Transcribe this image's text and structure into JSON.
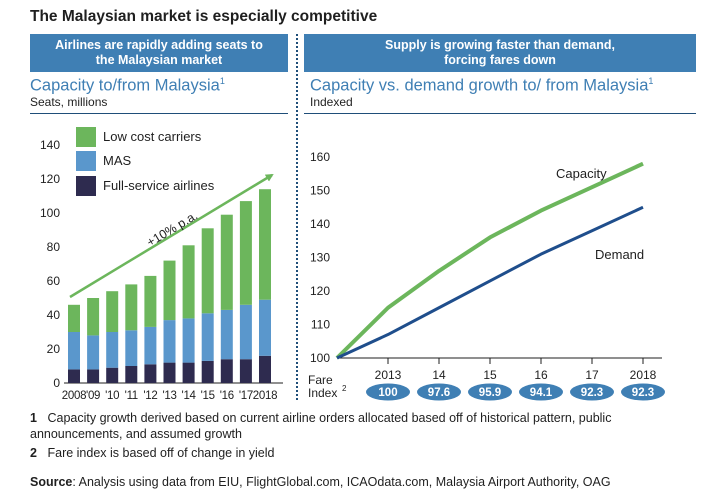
{
  "title": "The Malaysian market is especially competitive",
  "left_panel": {
    "banner_line1": "Airlines are rapidly adding seats to",
    "banner_line2": "the Malaysian market",
    "subtitle": "Capacity to/from Malaysia",
    "subtitle_sup": "1",
    "unit": "Seats, millions",
    "growth_label": "+10% p.a."
  },
  "right_panel": {
    "banner_line1": "Supply is growing faster than demand,",
    "banner_line2": "forcing  fares down",
    "subtitle": "Capacity vs. demand growth to/ from Malaysia",
    "subtitle_sup": "1",
    "unit": "Indexed",
    "fare_label_line1": "Fare",
    "fare_label_line2": "Index",
    "fare_label_sup": "2"
  },
  "colors": {
    "low_cost": "#6cb65c",
    "mas": "#5a97cc",
    "full_service": "#2e2b4f",
    "capacity_line": "#6cb65c",
    "demand_line": "#1f4e8c",
    "banner": "#3f7fb4",
    "fare_pill": "#3f7fb4"
  },
  "chart_data": [
    {
      "type": "bar",
      "stacked": true,
      "categories": [
        "2008",
        "'09",
        "'10",
        "'11",
        "'12",
        "'13",
        "'14",
        "'15",
        "'16",
        "'17",
        "2018"
      ],
      "series": [
        {
          "name": "Full-service airlines",
          "values": [
            8,
            8,
            9,
            10,
            11,
            12,
            12,
            13,
            14,
            14,
            16
          ]
        },
        {
          "name": "MAS",
          "values": [
            22,
            20,
            21,
            21,
            22,
            25,
            26,
            28,
            29,
            32,
            33
          ]
        },
        {
          "name": "Low cost carriers",
          "values": [
            16,
            22,
            24,
            27,
            30,
            35,
            43,
            50,
            56,
            61,
            65
          ]
        }
      ],
      "legend": [
        "Low cost carriers",
        "MAS",
        "Full-service airlines"
      ],
      "legend_position": "top-left",
      "yticks": [
        0,
        20,
        40,
        60,
        80,
        100,
        120,
        140
      ],
      "ylim": [
        0,
        140
      ],
      "annotation": "+10% p.a."
    },
    {
      "type": "line",
      "x": [
        "2012",
        "2013",
        "14",
        "15",
        "16",
        "17",
        "2018"
      ],
      "xtick_labels": [
        "2013",
        "14",
        "15",
        "16",
        "17",
        "2018"
      ],
      "series": [
        {
          "name": "Capacity",
          "values": [
            100,
            115,
            126,
            136,
            144,
            151,
            158
          ]
        },
        {
          "name": "Demand",
          "values": [
            100,
            107,
            115,
            123,
            131,
            138,
            145
          ]
        }
      ],
      "yticks": [
        100,
        110,
        120,
        130,
        140,
        150,
        160
      ],
      "ylim": [
        100,
        160
      ],
      "fare_index": [
        "100",
        "97.6",
        "95.9",
        "94.1",
        "92.3",
        "92.3"
      ]
    }
  ],
  "footnotes": [
    {
      "num": "1",
      "text": "Capacity growth derived based on current airline orders allocated based off of historical pattern, public announcements, and assumed growth"
    },
    {
      "num": "2",
      "text": "Fare index is based off of change in yield"
    }
  ],
  "source_label": "Source",
  "source_text": ": Analysis using data from EIU, FlightGlobal.com, ICAOdata.com, Malaysia Airport Authority, OAG"
}
